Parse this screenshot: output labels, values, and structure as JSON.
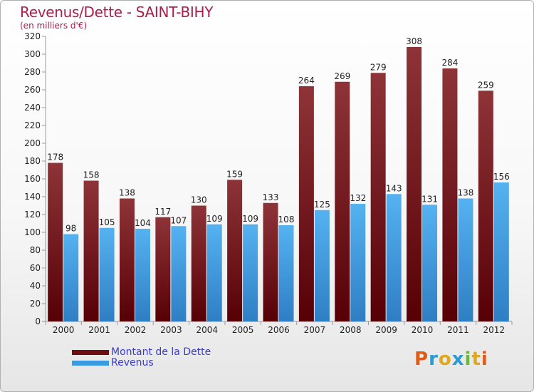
{
  "header": {
    "title": "Revenus/Dette - SAINT-BIHY",
    "subtitle": "(en milliers d'€)"
  },
  "legend": {
    "items": [
      {
        "label": "Montant de la Dette",
        "color": "#6b0f12"
      },
      {
        "label": "Revenus",
        "color": "#3a9be0"
      }
    ]
  },
  "brand": {
    "letters": [
      {
        "ch": "P",
        "color": "#e05a1a"
      },
      {
        "ch": "r",
        "color": "#2a9ad0"
      },
      {
        "ch": "o",
        "color": "#e0a81a"
      },
      {
        "ch": "x",
        "color": "#2a9ad0"
      },
      {
        "ch": "i",
        "color": "#6ab83a"
      },
      {
        "ch": "t",
        "color": "#e0a81a"
      },
      {
        "ch": "i",
        "color": "#e05a1a"
      }
    ]
  },
  "chart_data": {
    "type": "bar",
    "categories": [
      "2000",
      "2001",
      "2002",
      "2003",
      "2004",
      "2005",
      "2006",
      "2007",
      "2008",
      "2009",
      "2010",
      "2011",
      "2012"
    ],
    "series": [
      {
        "name": "Montant de la Dette",
        "color": "#6b0f12",
        "values": [
          178,
          158,
          138,
          117,
          130,
          159,
          133,
          264,
          269,
          279,
          308,
          284,
          259
        ]
      },
      {
        "name": "Revenus",
        "color": "#3a9be0",
        "values": [
          98,
          105,
          104,
          107,
          109,
          109,
          108,
          125,
          132,
          143,
          131,
          138,
          156
        ]
      }
    ],
    "yticks": [
      0,
      20,
      40,
      60,
      80,
      100,
      120,
      140,
      160,
      180,
      200,
      220,
      240,
      260,
      280,
      300,
      320
    ],
    "ylim": [
      0,
      320
    ],
    "grid": false,
    "legend_position": "bottom-left"
  }
}
